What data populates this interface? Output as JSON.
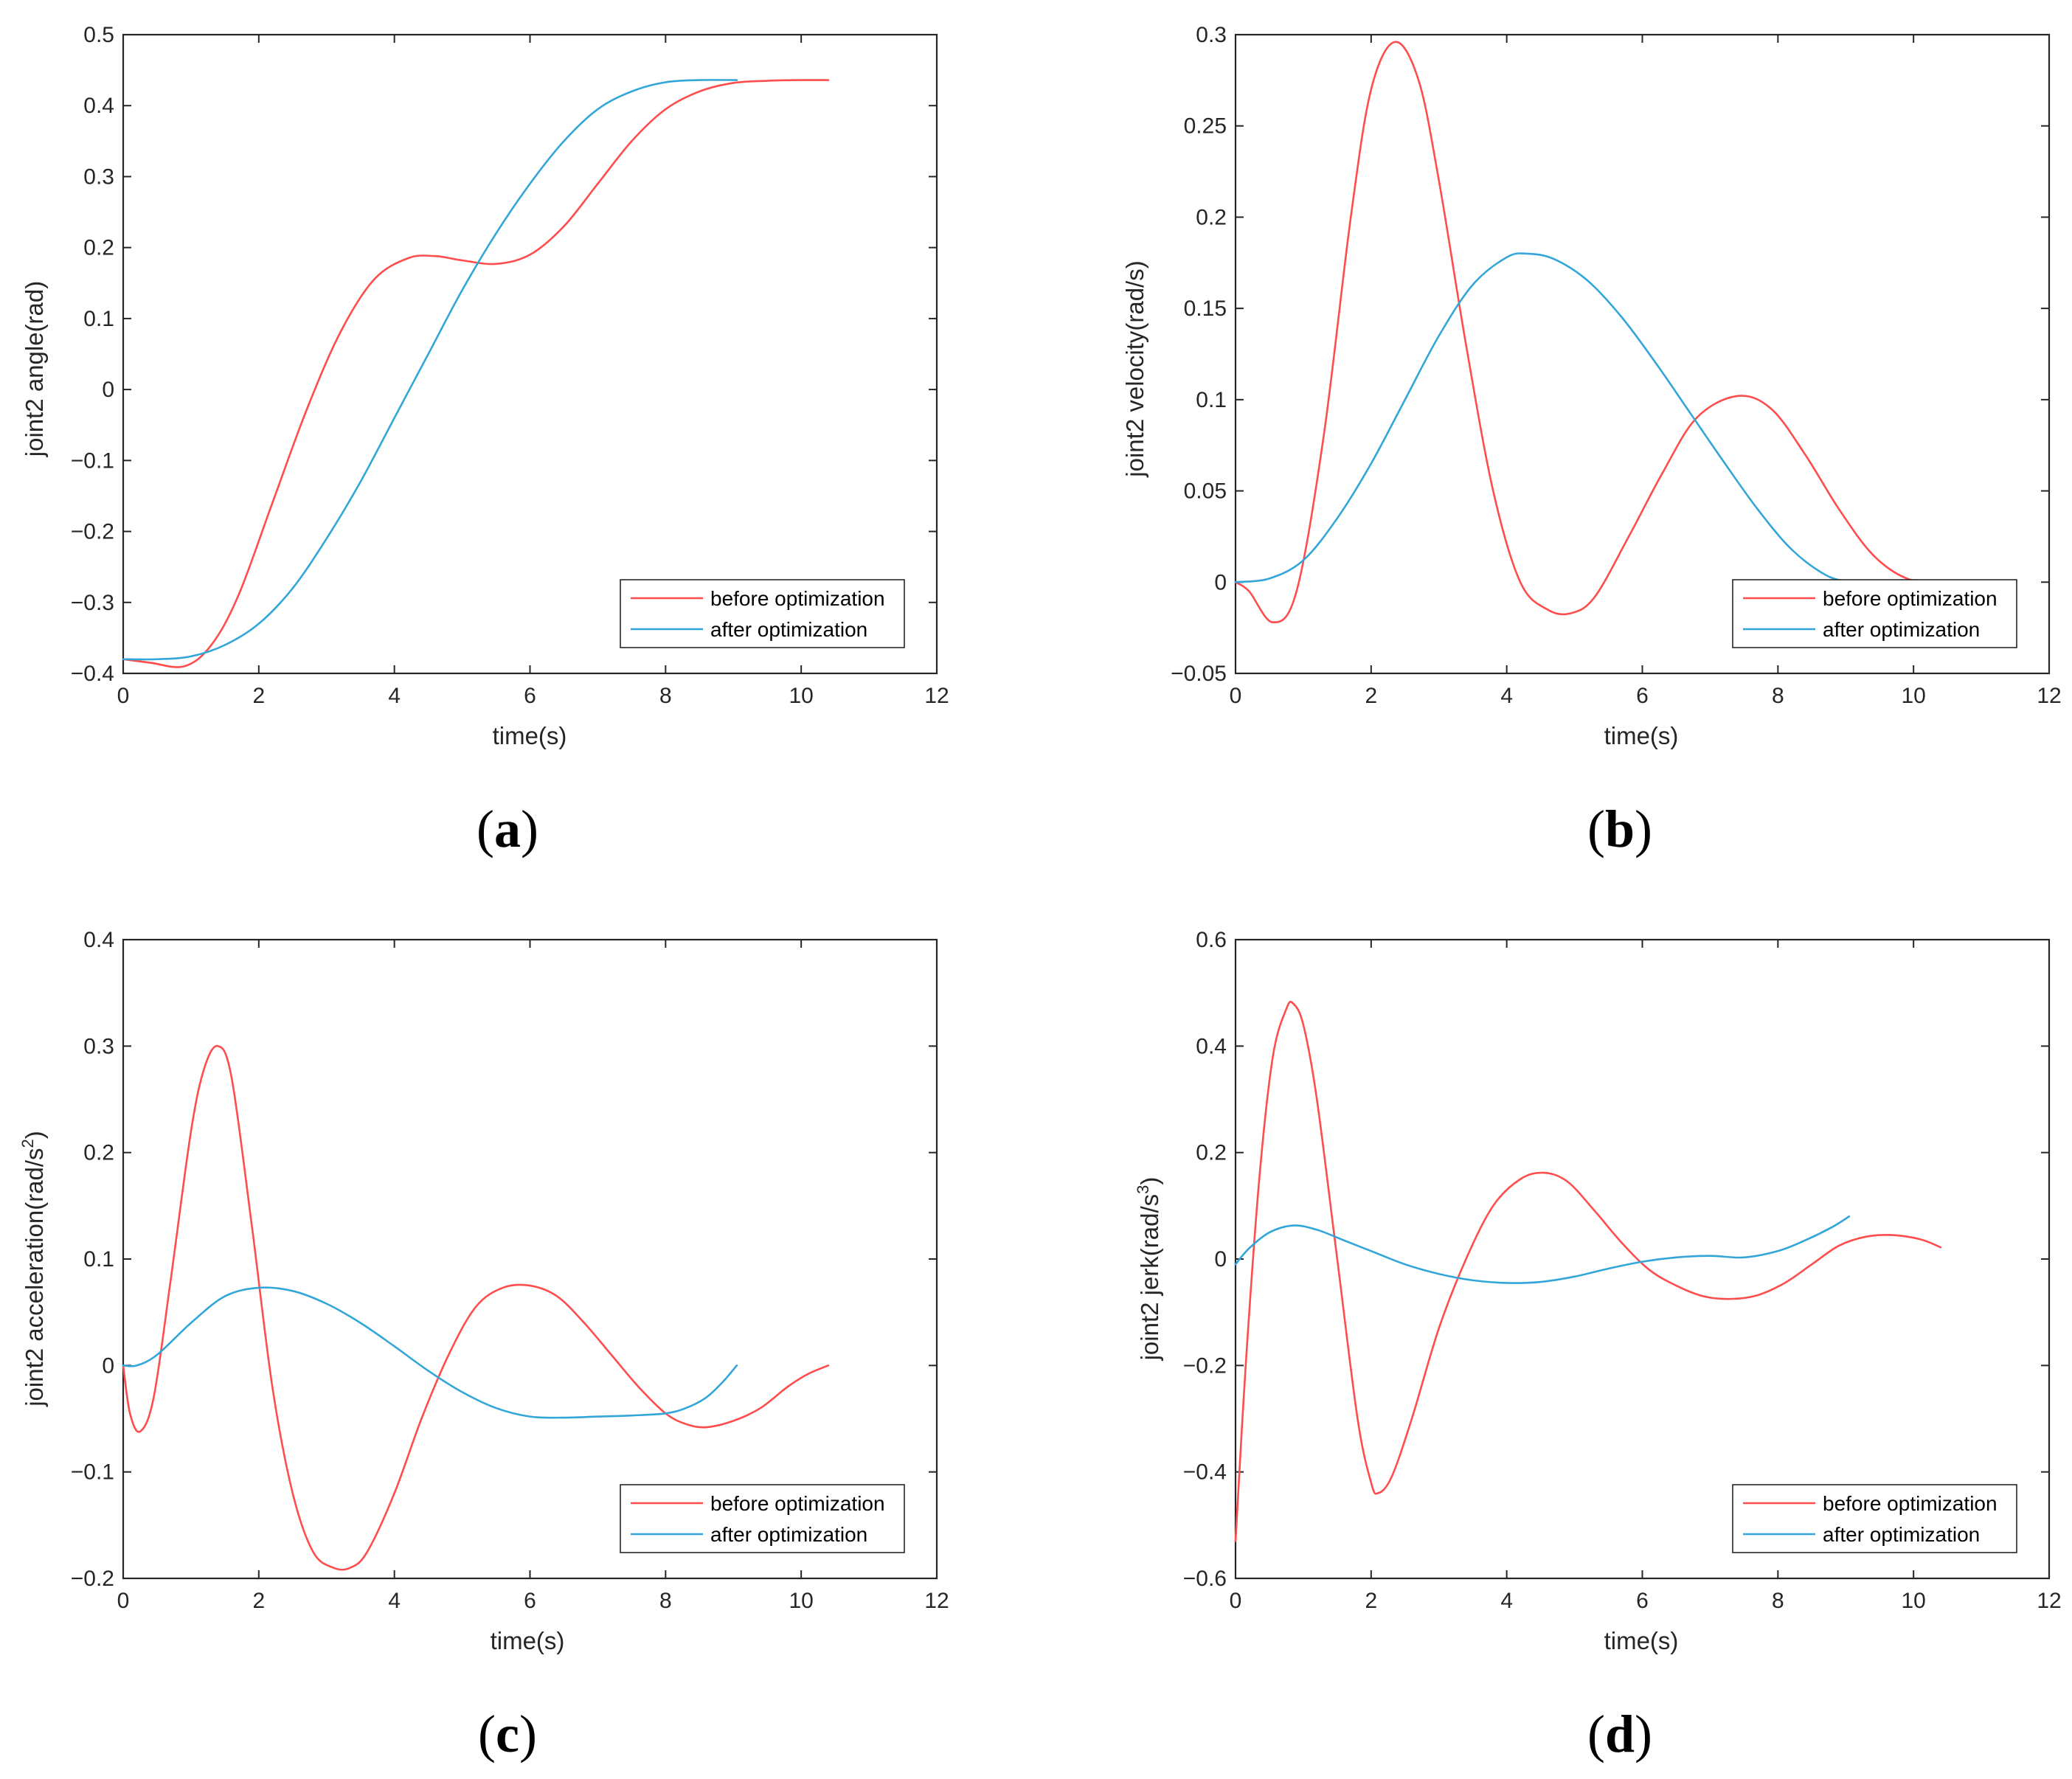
{
  "colors": {
    "before": "#ff4d4d",
    "after": "#33a6d9",
    "axis": "#262626"
  },
  "chart_data": [
    {
      "type": "line",
      "id": "a",
      "caption_open": "(",
      "caption_letter": "a",
      "caption_close": ")",
      "xlabel": "time(s)",
      "ylabel": "joint2 angle(rad)",
      "xlim": [
        0,
        12
      ],
      "ylim": [
        -0.4,
        0.5
      ],
      "xticks": [
        0,
        2,
        4,
        6,
        8,
        10,
        12
      ],
      "xtick_labels": [
        "0",
        "2",
        "4",
        "6",
        "8",
        "10",
        "12"
      ],
      "yticks": [
        -0.4,
        -0.3,
        -0.2,
        -0.1,
        0,
        0.1,
        0.2,
        0.3,
        0.4,
        0.5
      ],
      "ytick_labels": [
        "−0.4",
        "−0.3",
        "−0.2",
        "−0.1",
        "0",
        "0.1",
        "0.2",
        "0.3",
        "0.4",
        "0.5"
      ],
      "legend": "bottom-right",
      "series": [
        {
          "name": "before optimization",
          "color": "before",
          "x": [
            0,
            0.4,
            0.9,
            1.3,
            1.7,
            2.2,
            2.7,
            3.2,
            3.7,
            4.2,
            4.6,
            5.0,
            5.5,
            6.0,
            6.5,
            7.0,
            7.5,
            8.0,
            8.5,
            9.0,
            9.5,
            10.0,
            10.4
          ],
          "y": [
            -0.38,
            -0.385,
            -0.39,
            -0.36,
            -0.29,
            -0.16,
            -0.03,
            0.08,
            0.155,
            0.185,
            0.188,
            0.182,
            0.177,
            0.19,
            0.23,
            0.29,
            0.35,
            0.395,
            0.42,
            0.432,
            0.435,
            0.436,
            0.436
          ]
        },
        {
          "name": "after optimization",
          "color": "after",
          "x": [
            0,
            0.5,
            1.0,
            1.5,
            2.0,
            2.5,
            3.0,
            3.5,
            4.0,
            4.5,
            5.0,
            5.5,
            6.0,
            6.5,
            7.0,
            7.5,
            8.0,
            8.5,
            9.05
          ],
          "y": [
            -0.38,
            -0.38,
            -0.376,
            -0.36,
            -0.33,
            -0.28,
            -0.21,
            -0.13,
            -0.04,
            0.05,
            0.14,
            0.22,
            0.29,
            0.35,
            0.395,
            0.42,
            0.433,
            0.436,
            0.436
          ]
        }
      ]
    },
    {
      "type": "line",
      "id": "b",
      "caption_open": "(",
      "caption_letter": "b",
      "caption_close": ")",
      "xlabel": "time(s)",
      "ylabel": "joint2 velocity(rad/s)",
      "xlim": [
        0,
        12
      ],
      "ylim": [
        -0.05,
        0.3
      ],
      "xticks": [
        0,
        2,
        4,
        6,
        8,
        10,
        12
      ],
      "xtick_labels": [
        "0",
        "2",
        "4",
        "6",
        "8",
        "10",
        "12"
      ],
      "yticks": [
        -0.05,
        0,
        0.05,
        0.1,
        0.15,
        0.2,
        0.25,
        0.3
      ],
      "ytick_labels": [
        "−0.05",
        "0",
        "0.05",
        "0.1",
        "0.15",
        "0.2",
        "0.25",
        "0.3"
      ],
      "legend": "bottom-right",
      "series": [
        {
          "name": "before optimization",
          "color": "before",
          "x": [
            0,
            0.2,
            0.55,
            0.9,
            1.3,
            1.7,
            2.0,
            2.35,
            2.7,
            3.0,
            3.4,
            3.8,
            4.2,
            4.6,
            4.95,
            5.3,
            5.8,
            6.3,
            6.8,
            7.4,
            7.9,
            8.4,
            8.9,
            9.4,
            9.9,
            10.4
          ],
          "y": [
            0,
            -0.005,
            -0.022,
            -0.005,
            0.08,
            0.2,
            0.27,
            0.296,
            0.275,
            0.22,
            0.13,
            0.05,
            0.0,
            -0.015,
            -0.017,
            -0.008,
            0.025,
            0.06,
            0.09,
            0.102,
            0.095,
            0.07,
            0.04,
            0.015,
            0.002,
            0
          ]
        },
        {
          "name": "after optimization",
          "color": "after",
          "x": [
            0,
            0.5,
            1.0,
            1.5,
            2.0,
            2.5,
            3.0,
            3.5,
            4.0,
            4.3,
            4.7,
            5.2,
            5.7,
            6.2,
            6.7,
            7.2,
            7.7,
            8.2,
            8.7,
            9.05
          ],
          "y": [
            0,
            0.002,
            0.012,
            0.035,
            0.065,
            0.1,
            0.135,
            0.163,
            0.178,
            0.18,
            0.177,
            0.165,
            0.145,
            0.12,
            0.093,
            0.066,
            0.04,
            0.018,
            0.004,
            0
          ]
        }
      ]
    },
    {
      "type": "line",
      "id": "c",
      "caption_open": "(",
      "caption_letter": "c",
      "caption_close": ")",
      "xlabel": "time(s)",
      "ylabel_main": "joint2 acceleration(rad/s",
      "ylabel_sup": "2",
      "ylabel_end": ")",
      "xlim": [
        0,
        12
      ],
      "ylim": [
        -0.2,
        0.4
      ],
      "xticks": [
        0,
        2,
        4,
        6,
        8,
        10,
        12
      ],
      "xtick_labels": [
        "0",
        "2",
        "4",
        "6",
        "8",
        "10",
        "12"
      ],
      "yticks": [
        -0.2,
        -0.1,
        0,
        0.1,
        0.2,
        0.3,
        0.4
      ],
      "ytick_labels": [
        "−0.2",
        "−0.1",
        "0",
        "0.1",
        "0.2",
        "0.3",
        "0.4"
      ],
      "legend": "bottom-right",
      "series": [
        {
          "name": "before optimization",
          "color": "before",
          "x": [
            0,
            0.1,
            0.25,
            0.45,
            0.7,
            1.0,
            1.2,
            1.4,
            1.6,
            1.9,
            2.2,
            2.5,
            2.8,
            3.1,
            3.35,
            3.6,
            4.0,
            4.4,
            4.8,
            5.2,
            5.6,
            6.0,
            6.4,
            6.8,
            7.2,
            7.6,
            8.0,
            8.3,
            8.6,
            9.0,
            9.4,
            9.8,
            10.1,
            10.4
          ],
          "y": [
            0,
            -0.045,
            -0.062,
            -0.03,
            0.08,
            0.22,
            0.28,
            0.3,
            0.27,
            0.13,
            -0.02,
            -0.12,
            -0.175,
            -0.19,
            -0.19,
            -0.175,
            -0.12,
            -0.05,
            0.01,
            0.055,
            0.073,
            0.075,
            0.065,
            0.04,
            0.01,
            -0.02,
            -0.045,
            -0.055,
            -0.058,
            -0.052,
            -0.04,
            -0.02,
            -0.008,
            0
          ]
        },
        {
          "name": "after optimization",
          "color": "after",
          "x": [
            0,
            0.2,
            0.5,
            1.0,
            1.5,
            2.0,
            2.5,
            3.0,
            3.5,
            4.0,
            4.5,
            5.0,
            5.5,
            6.0,
            6.5,
            7.0,
            7.5,
            8.0,
            8.3,
            8.6,
            8.85,
            9.05
          ],
          "y": [
            0,
            0,
            0.01,
            0.04,
            0.065,
            0.073,
            0.07,
            0.058,
            0.04,
            0.018,
            -0.005,
            -0.025,
            -0.04,
            -0.048,
            -0.049,
            -0.048,
            -0.047,
            -0.045,
            -0.04,
            -0.03,
            -0.015,
            0
          ]
        }
      ]
    },
    {
      "type": "line",
      "id": "d",
      "caption_open": "(",
      "caption_letter": "d",
      "caption_close": ")",
      "xlabel": "time(s)",
      "ylabel_main": "joint2  jerk(rad/s",
      "ylabel_sup": "3",
      "ylabel_end": ")",
      "xlim": [
        0,
        12
      ],
      "ylim": [
        -0.6,
        0.6
      ],
      "xticks": [
        0,
        2,
        4,
        6,
        8,
        10,
        12
      ],
      "xtick_labels": [
        "0",
        "2",
        "4",
        "6",
        "8",
        "10",
        "12"
      ],
      "yticks": [
        -0.6,
        -0.4,
        -0.2,
        0,
        0.2,
        0.4,
        0.6
      ],
      "ytick_labels": [
        "−0.6",
        "−0.4",
        "−0.2",
        "0",
        "0.2",
        "0.4",
        "0.6"
      ],
      "legend": "bottom-right",
      "series": [
        {
          "name": "before optimization",
          "color": "before",
          "x": [
            0,
            0.15,
            0.35,
            0.55,
            0.75,
            0.85,
            1.0,
            1.2,
            1.5,
            1.8,
            2.0,
            2.1,
            2.3,
            2.6,
            3.0,
            3.4,
            3.8,
            4.2,
            4.55,
            4.9,
            5.3,
            5.7,
            6.1,
            6.5,
            6.9,
            7.3,
            7.7,
            8.1,
            8.5,
            8.9,
            9.3,
            9.7,
            10.1,
            10.4
          ],
          "y": [
            -0.53,
            -0.2,
            0.15,
            0.38,
            0.47,
            0.48,
            0.44,
            0.3,
            0.0,
            -0.3,
            -0.42,
            -0.44,
            -0.41,
            -0.3,
            -0.13,
            0.0,
            0.1,
            0.15,
            0.162,
            0.145,
            0.09,
            0.03,
            -0.02,
            -0.05,
            -0.07,
            -0.075,
            -0.068,
            -0.045,
            -0.01,
            0.025,
            0.042,
            0.045,
            0.037,
            0.022
          ]
        },
        {
          "name": "after optimization",
          "color": "after",
          "x": [
            0,
            0.2,
            0.5,
            0.85,
            1.2,
            1.6,
            2.0,
            2.5,
            3.0,
            3.5,
            4.0,
            4.5,
            5.0,
            5.5,
            6.0,
            6.5,
            7.0,
            7.5,
            8.0,
            8.4,
            8.8,
            9.05
          ],
          "y": [
            -0.01,
            0.02,
            0.05,
            0.063,
            0.055,
            0.035,
            0.015,
            -0.01,
            -0.028,
            -0.04,
            -0.045,
            -0.043,
            -0.033,
            -0.018,
            -0.005,
            0.003,
            0.006,
            0.003,
            0.015,
            0.035,
            0.06,
            0.08
          ]
        }
      ]
    }
  ]
}
